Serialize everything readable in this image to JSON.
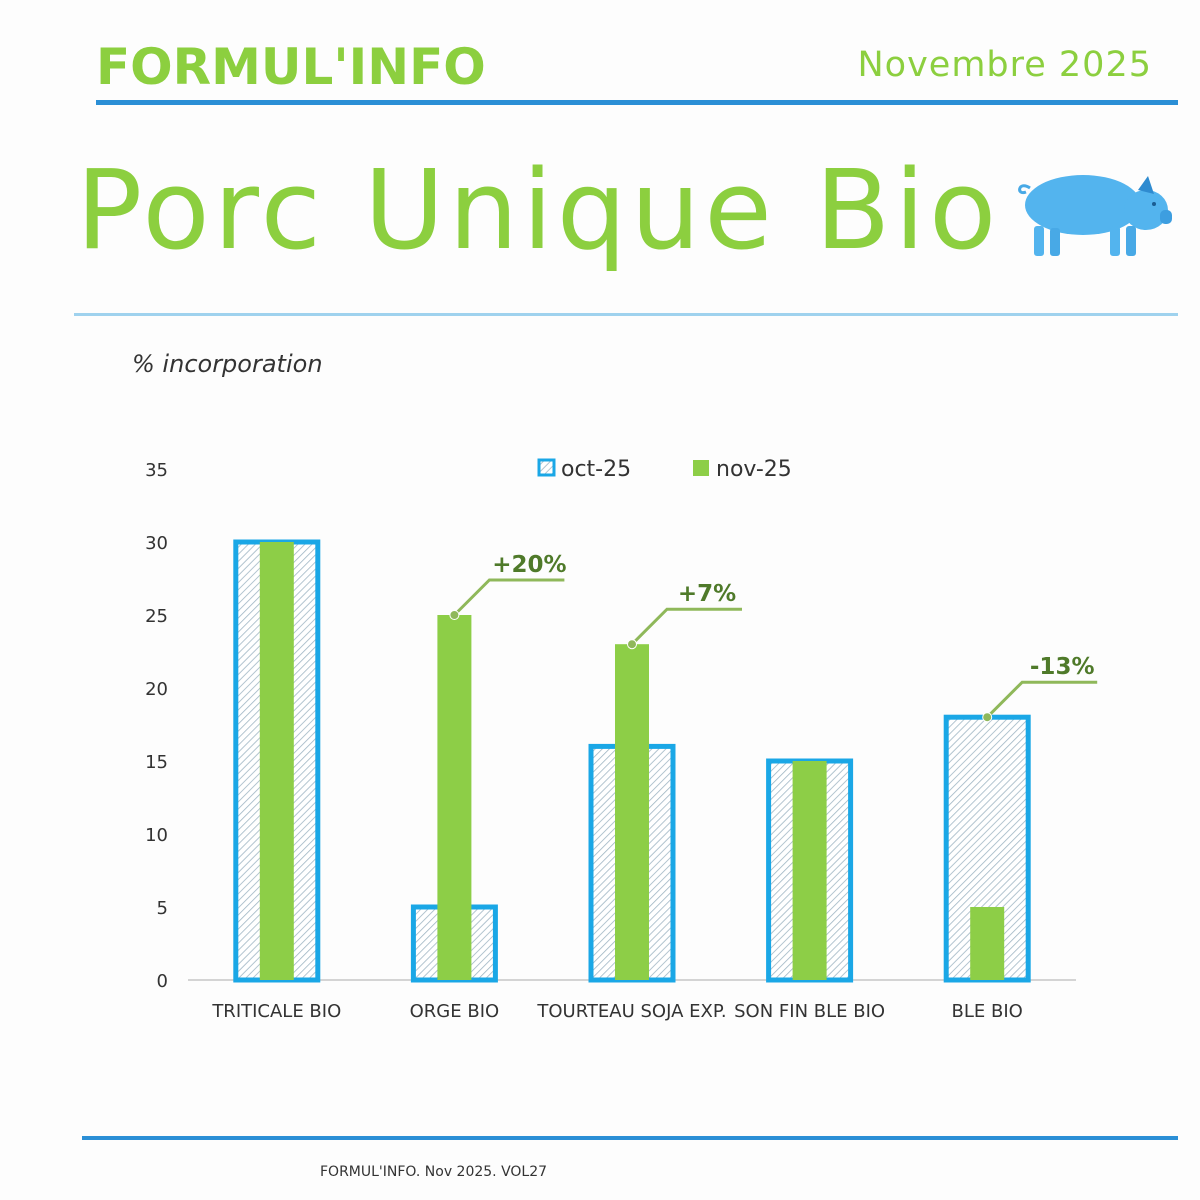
{
  "header": {
    "brand": "FORMUL'INFO",
    "issue_date": "Novembre 2025",
    "title": "Porc Unique Bio"
  },
  "colors": {
    "brand_green": "#8ccf3f",
    "accent_blue": "#2b8fd6",
    "oct_bar_outline": "#1aa7e6",
    "nov_bar_fill": "#8dce47",
    "annotation_green": "#8fb85a",
    "annotation_text": "#4f7a2a"
  },
  "icons": {
    "mascot": "pig-icon"
  },
  "chart_data": {
    "type": "bar",
    "ylabel": "% incorporation",
    "ylim": [
      0,
      35
    ],
    "yticks": [
      0,
      5,
      10,
      15,
      20,
      25,
      30,
      35
    ],
    "grid": false,
    "legend_position": "top-center",
    "categories": [
      "TRITICALE BIO",
      "ORGE BIO",
      "TOURTEAU SOJA EXP.",
      "SON FIN BLE BIO",
      "BLE BIO"
    ],
    "series": [
      {
        "name": "oct-25",
        "values": [
          30,
          5,
          16,
          15,
          18
        ],
        "style": "hatched-outline"
      },
      {
        "name": "nov-25",
        "values": [
          30,
          25,
          23,
          15,
          5
        ],
        "style": "solid"
      }
    ],
    "annotations": [
      {
        "category": "ORGE BIO",
        "label": "+20%",
        "value": 25
      },
      {
        "category": "TOURTEAU SOJA EXP.",
        "label": "+7%",
        "value": 23
      },
      {
        "category": "BLE BIO",
        "label": "-13%",
        "value": 18
      }
    ]
  },
  "footer": {
    "text": "FORMUL'INFO. Nov 2025. VOL27"
  }
}
